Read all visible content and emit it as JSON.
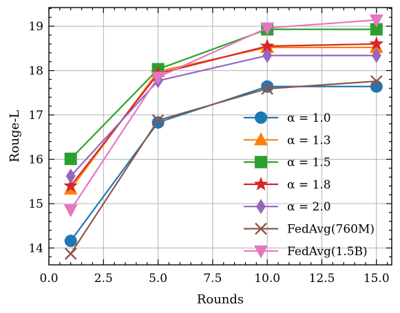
{
  "chart_data": {
    "type": "line",
    "title": "",
    "xlabel": "Rounds",
    "ylabel": "Rouge-L",
    "xlim": [
      0.0,
      15.7
    ],
    "ylim": [
      13.62,
      19.42
    ],
    "xticks": [
      0.0,
      2.5,
      5.0,
      7.5,
      10.0,
      12.5,
      15.0
    ],
    "xtick_labels": [
      "0.0",
      "2.5",
      "5.0",
      "7.5",
      "10.0",
      "12.5",
      "15.0"
    ],
    "yticks": [
      14,
      15,
      16,
      17,
      18,
      19
    ],
    "ytick_labels": [
      "14",
      "15",
      "16",
      "17",
      "18",
      "19"
    ],
    "grid": true,
    "legend_position": "lower-right",
    "x": [
      1,
      5,
      10,
      15
    ],
    "series": [
      {
        "name": "α = 1.0",
        "color": "#1f77b4",
        "marker": "circle",
        "values": [
          14.16,
          16.83,
          17.64,
          17.64
        ]
      },
      {
        "name": "α = 1.3",
        "color": "#ff7f0e",
        "marker": "triangle-up",
        "values": [
          15.33,
          17.98,
          18.52,
          18.52
        ]
      },
      {
        "name": "α = 1.5",
        "color": "#2ca02c",
        "marker": "square",
        "values": [
          16.01,
          18.03,
          18.93,
          18.93
        ]
      },
      {
        "name": "α = 1.8",
        "color": "#d62728",
        "marker": "star",
        "values": [
          15.4,
          17.93,
          18.55,
          18.6
        ]
      },
      {
        "name": "α = 2.0",
        "color": "#9467bd",
        "marker": "diamond",
        "values": [
          15.62,
          17.77,
          18.34,
          18.34
        ]
      },
      {
        "name": "FedAvg(760M)",
        "color": "#8c564b",
        "marker": "x",
        "values": [
          13.87,
          16.88,
          17.59,
          17.76
        ]
      },
      {
        "name": "FedAvg(1.5B)",
        "color": "#e377c2",
        "marker": "triangle-down",
        "values": [
          14.86,
          17.85,
          18.96,
          19.14
        ]
      }
    ]
  }
}
